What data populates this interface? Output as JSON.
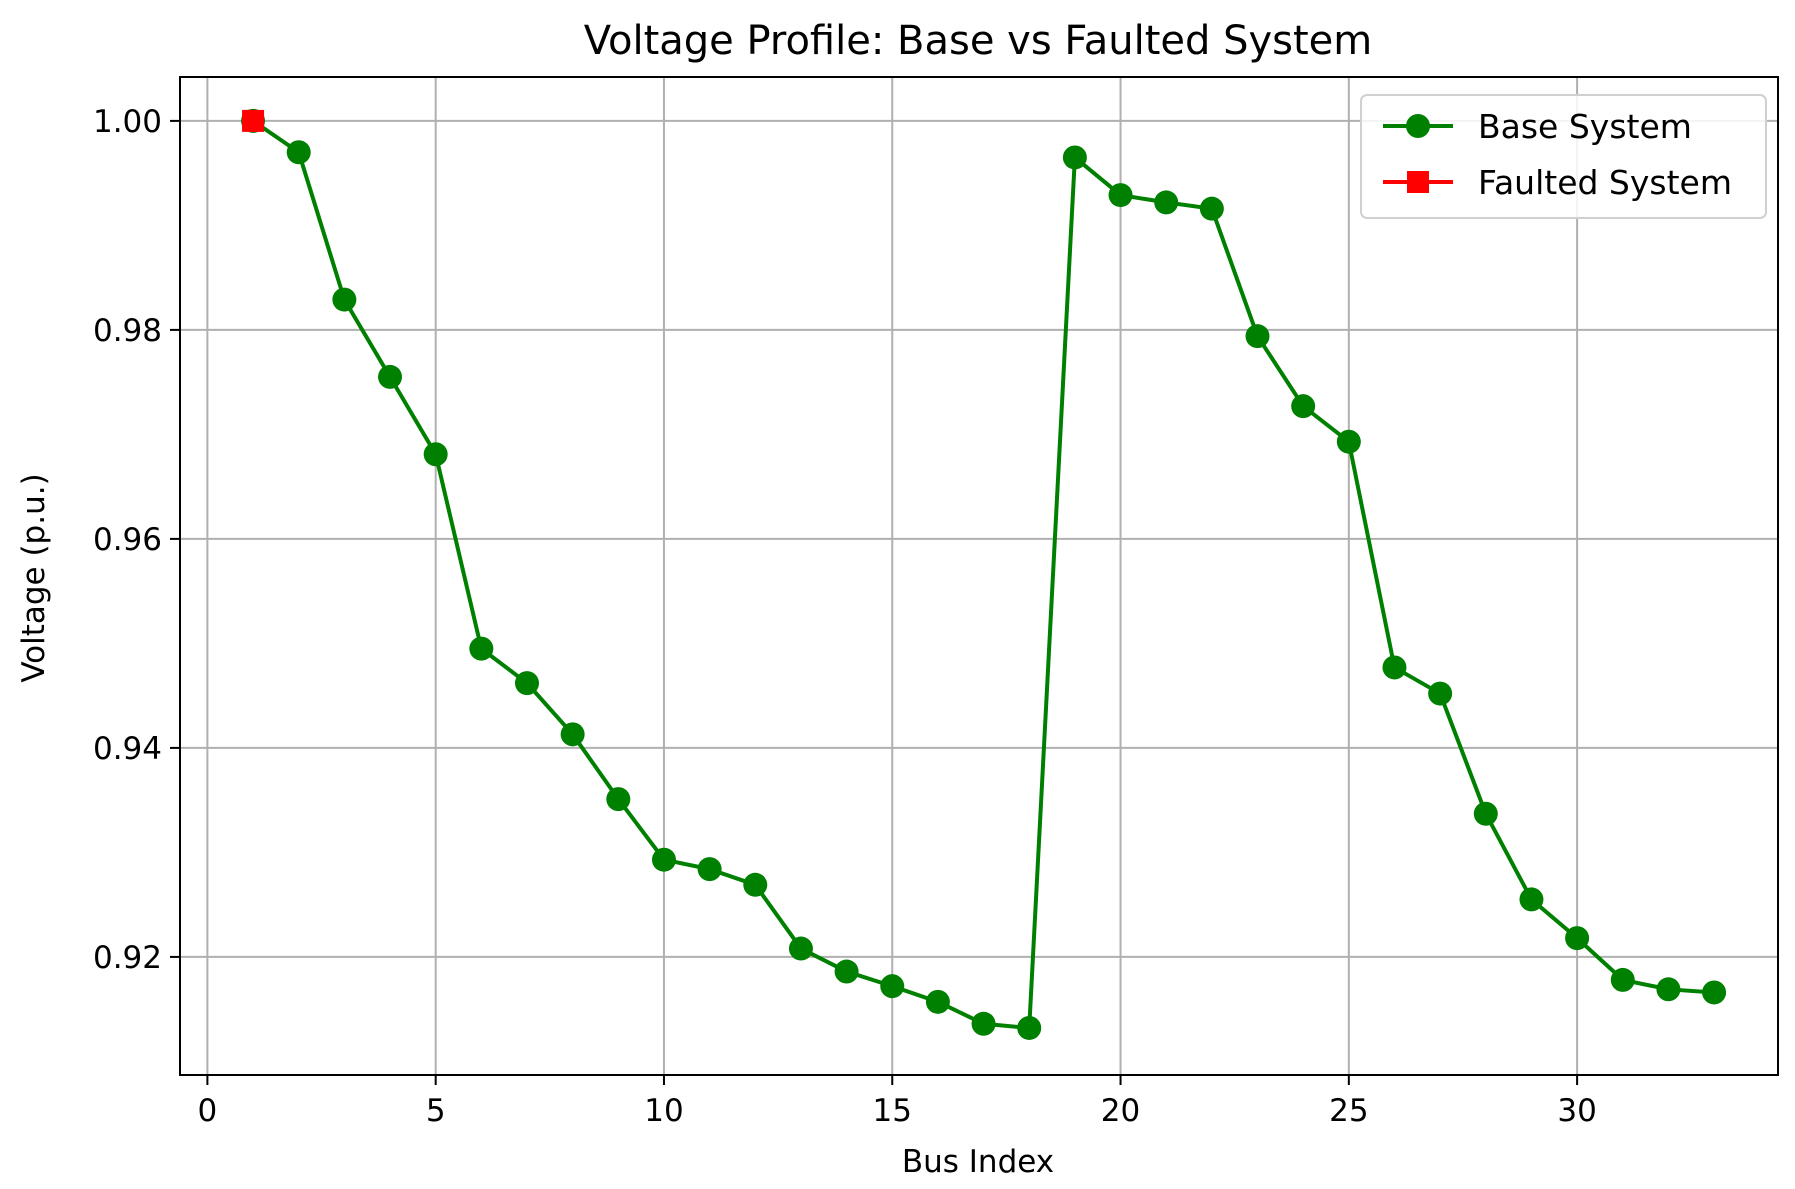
{
  "chart_data": {
    "type": "line",
    "title": "Voltage Profile: Base vs Faulted System",
    "xlabel": "Bus Index",
    "ylabel": "Voltage (p.u.)",
    "xlim": [
      -0.6,
      34.4
    ],
    "ylim": [
      0.9087,
      1.0042
    ],
    "xticks": [
      0,
      5,
      10,
      15,
      20,
      25,
      30
    ],
    "yticks": [
      0.92,
      0.94,
      0.96,
      0.98,
      1.0
    ],
    "ytick_labels": [
      "0.92",
      "0.94",
      "0.96",
      "0.98",
      "1.00"
    ],
    "grid": true,
    "legend_position": "top-right",
    "series": [
      {
        "name": "Base System",
        "color": "#008000",
        "marker": "circle",
        "x": [
          1,
          2,
          3,
          4,
          5,
          6,
          7,
          8,
          9,
          10,
          11,
          12,
          13,
          14,
          15,
          16,
          17,
          18,
          19,
          20,
          21,
          22,
          23,
          24,
          25,
          26,
          27,
          28,
          29,
          30,
          31,
          32,
          33
        ],
        "y": [
          1.0,
          0.997,
          0.9829,
          0.9755,
          0.9681,
          0.9495,
          0.9462,
          0.9413,
          0.9351,
          0.9293,
          0.9284,
          0.9269,
          0.9208,
          0.9186,
          0.9172,
          0.9157,
          0.9136,
          0.9132,
          0.9965,
          0.9929,
          0.9922,
          0.9916,
          0.9794,
          0.9727,
          0.9693,
          0.9477,
          0.9452,
          0.9337,
          0.9255,
          0.9218,
          0.9178,
          0.9169,
          0.9166
        ]
      },
      {
        "name": "Faulted System",
        "color": "#ff0000",
        "marker": "square",
        "x": [
          1
        ],
        "y": [
          1.0
        ]
      }
    ]
  }
}
